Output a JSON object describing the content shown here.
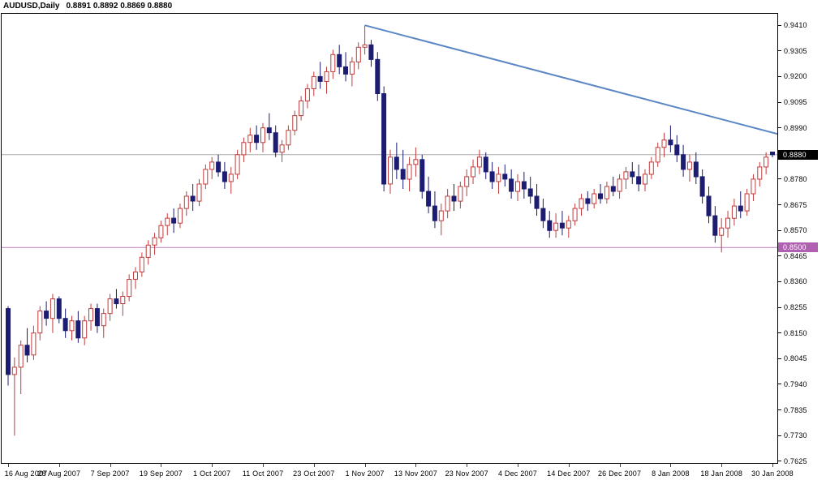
{
  "header": {
    "symbol_period": "AUDUSD,Daily",
    "ohlc": "0.8891 0.8892 0.8869 0.8880"
  },
  "chart_data": {
    "type": "candlestick",
    "title": "AUDUSD Daily",
    "symbol": "AUDUSD",
    "timeframe": "Daily",
    "last_quote": {
      "open": 0.8891,
      "high": 0.8892,
      "low": 0.8869,
      "close": 0.888
    },
    "ylim": [
      0.7618,
      0.9457
    ],
    "y_ticks": [
      0.941,
      0.9305,
      0.92,
      0.9095,
      0.899,
      0.878,
      0.8675,
      0.857,
      0.8465,
      0.836,
      0.8255,
      0.815,
      0.8045,
      0.794,
      0.7835,
      0.773,
      0.7625
    ],
    "x_tick_labels": [
      "16 Aug 2007",
      "28 Aug 2007",
      "7 Sep 2007",
      "19 Sep 2007",
      "1 Oct 2007",
      "11 Oct 2007",
      "23 Oct 2007",
      "1 Nov 2007",
      "13 Nov 2007",
      "23 Nov 2007",
      "4 Dec 2007",
      "14 Dec 2007",
      "26 Dec 2007",
      "8 Jan 2008",
      "18 Jan 2008",
      "30 Jan 2008"
    ],
    "x_tick_every": 8,
    "colors": {
      "up": "#C13B3B",
      "up_fill": "#FFFFFF",
      "down": "#1C1C72",
      "background": "#FFFFFF",
      "border": "#000000"
    },
    "trendline": {
      "from_index": 56,
      "from_price": 0.941,
      "to_price": 0.8965,
      "color": "#5B87C5"
    },
    "hlines": [
      {
        "price": 0.888,
        "line_color": "#ABABAB",
        "label": "0.8880",
        "label_bg": "#000000",
        "label_fg": "#FFFFFF"
      },
      {
        "price": 0.85,
        "line_color": "#BD7CBD",
        "label": "0.8500",
        "label_bg": "#B060B0",
        "label_fg": "#FFFFFF"
      }
    ],
    "candles": [
      [
        0.825,
        0.826,
        0.7935,
        0.798
      ],
      [
        0.798,
        0.805,
        0.773,
        0.801
      ],
      [
        0.801,
        0.812,
        0.79,
        0.81
      ],
      [
        0.81,
        0.817,
        0.803,
        0.806
      ],
      [
        0.806,
        0.818,
        0.804,
        0.815
      ],
      [
        0.815,
        0.826,
        0.812,
        0.824
      ],
      [
        0.824,
        0.828,
        0.818,
        0.821
      ],
      [
        0.821,
        0.831,
        0.815,
        0.829
      ],
      [
        0.829,
        0.83,
        0.819,
        0.821
      ],
      [
        0.821,
        0.825,
        0.813,
        0.816
      ],
      [
        0.816,
        0.822,
        0.812,
        0.82
      ],
      [
        0.82,
        0.824,
        0.811,
        0.813
      ],
      [
        0.813,
        0.822,
        0.81,
        0.82
      ],
      [
        0.82,
        0.827,
        0.816,
        0.825
      ],
      [
        0.825,
        0.827,
        0.815,
        0.818
      ],
      [
        0.818,
        0.825,
        0.813,
        0.823
      ],
      [
        0.823,
        0.831,
        0.82,
        0.829
      ],
      [
        0.829,
        0.833,
        0.825,
        0.827
      ],
      [
        0.827,
        0.832,
        0.822,
        0.83
      ],
      [
        0.83,
        0.839,
        0.828,
        0.837
      ],
      [
        0.837,
        0.842,
        0.833,
        0.84
      ],
      [
        0.84,
        0.848,
        0.838,
        0.846
      ],
      [
        0.846,
        0.853,
        0.843,
        0.851
      ],
      [
        0.851,
        0.856,
        0.847,
        0.854
      ],
      [
        0.854,
        0.861,
        0.852,
        0.859
      ],
      [
        0.859,
        0.864,
        0.855,
        0.862
      ],
      [
        0.862,
        0.866,
        0.856,
        0.86
      ],
      [
        0.86,
        0.868,
        0.858,
        0.866
      ],
      [
        0.866,
        0.873,
        0.863,
        0.871
      ],
      [
        0.871,
        0.876,
        0.865,
        0.869
      ],
      [
        0.869,
        0.878,
        0.867,
        0.876
      ],
      [
        0.876,
        0.884,
        0.874,
        0.882
      ],
      [
        0.882,
        0.887,
        0.878,
        0.885
      ],
      [
        0.885,
        0.888,
        0.879,
        0.881
      ],
      [
        0.881,
        0.885,
        0.874,
        0.877
      ],
      [
        0.877,
        0.883,
        0.872,
        0.88
      ],
      [
        0.88,
        0.89,
        0.878,
        0.888
      ],
      [
        0.888,
        0.895,
        0.885,
        0.893
      ],
      [
        0.893,
        0.899,
        0.889,
        0.896
      ],
      [
        0.896,
        0.9,
        0.89,
        0.893
      ],
      [
        0.893,
        0.901,
        0.889,
        0.899
      ],
      [
        0.899,
        0.905,
        0.894,
        0.897
      ],
      [
        0.897,
        0.9,
        0.887,
        0.889
      ],
      [
        0.889,
        0.894,
        0.885,
        0.892
      ],
      [
        0.892,
        0.9,
        0.89,
        0.898
      ],
      [
        0.898,
        0.906,
        0.896,
        0.904
      ],
      [
        0.904,
        0.912,
        0.902,
        0.91
      ],
      [
        0.91,
        0.917,
        0.907,
        0.915
      ],
      [
        0.915,
        0.922,
        0.912,
        0.92
      ],
      [
        0.92,
        0.926,
        0.915,
        0.918
      ],
      [
        0.918,
        0.924,
        0.913,
        0.922
      ],
      [
        0.922,
        0.931,
        0.919,
        0.929
      ],
      [
        0.929,
        0.933,
        0.921,
        0.924
      ],
      [
        0.924,
        0.93,
        0.918,
        0.921
      ],
      [
        0.921,
        0.928,
        0.916,
        0.926
      ],
      [
        0.926,
        0.934,
        0.923,
        0.932
      ],
      [
        0.932,
        0.941,
        0.929,
        0.933
      ],
      [
        0.933,
        0.935,
        0.924,
        0.927
      ],
      [
        0.927,
        0.93,
        0.91,
        0.913
      ],
      [
        0.913,
        0.916,
        0.873,
        0.876
      ],
      [
        0.876,
        0.89,
        0.872,
        0.887
      ],
      [
        0.887,
        0.893,
        0.878,
        0.882
      ],
      [
        0.882,
        0.89,
        0.874,
        0.878
      ],
      [
        0.878,
        0.887,
        0.873,
        0.884
      ],
      [
        0.884,
        0.891,
        0.879,
        0.886
      ],
      [
        0.886,
        0.888,
        0.87,
        0.873
      ],
      [
        0.873,
        0.879,
        0.864,
        0.867
      ],
      [
        0.867,
        0.873,
        0.858,
        0.861
      ],
      [
        0.861,
        0.868,
        0.855,
        0.865
      ],
      [
        0.865,
        0.874,
        0.862,
        0.871
      ],
      [
        0.871,
        0.876,
        0.865,
        0.869
      ],
      [
        0.869,
        0.877,
        0.866,
        0.875
      ],
      [
        0.875,
        0.882,
        0.871,
        0.879
      ],
      [
        0.879,
        0.886,
        0.876,
        0.883
      ],
      [
        0.883,
        0.89,
        0.88,
        0.887
      ],
      [
        0.887,
        0.889,
        0.878,
        0.881
      ],
      [
        0.881,
        0.885,
        0.874,
        0.877
      ],
      [
        0.877,
        0.883,
        0.872,
        0.88
      ],
      [
        0.88,
        0.884,
        0.875,
        0.878
      ],
      [
        0.878,
        0.882,
        0.87,
        0.873
      ],
      [
        0.873,
        0.88,
        0.869,
        0.877
      ],
      [
        0.877,
        0.881,
        0.87,
        0.874
      ],
      [
        0.874,
        0.879,
        0.868,
        0.871
      ],
      [
        0.871,
        0.876,
        0.863,
        0.866
      ],
      [
        0.866,
        0.87,
        0.858,
        0.861
      ],
      [
        0.861,
        0.865,
        0.854,
        0.857
      ],
      [
        0.857,
        0.864,
        0.854,
        0.86
      ],
      [
        0.86,
        0.865,
        0.855,
        0.858
      ],
      [
        0.858,
        0.863,
        0.854,
        0.861
      ],
      [
        0.861,
        0.868,
        0.859,
        0.866
      ],
      [
        0.866,
        0.872,
        0.863,
        0.87
      ],
      [
        0.87,
        0.873,
        0.865,
        0.868
      ],
      [
        0.868,
        0.874,
        0.866,
        0.872
      ],
      [
        0.872,
        0.876,
        0.868,
        0.87
      ],
      [
        0.87,
        0.877,
        0.868,
        0.875
      ],
      [
        0.875,
        0.879,
        0.871,
        0.873
      ],
      [
        0.873,
        0.88,
        0.87,
        0.878
      ],
      [
        0.878,
        0.883,
        0.874,
        0.881
      ],
      [
        0.881,
        0.885,
        0.876,
        0.879
      ],
      [
        0.879,
        0.884,
        0.873,
        0.876
      ],
      [
        0.876,
        0.882,
        0.873,
        0.88
      ],
      [
        0.88,
        0.887,
        0.878,
        0.885
      ],
      [
        0.885,
        0.893,
        0.883,
        0.891
      ],
      [
        0.891,
        0.897,
        0.887,
        0.894
      ],
      [
        0.894,
        0.9,
        0.889,
        0.892
      ],
      [
        0.892,
        0.896,
        0.885,
        0.888
      ],
      [
        0.888,
        0.892,
        0.879,
        0.882
      ],
      [
        0.882,
        0.888,
        0.877,
        0.885
      ],
      [
        0.885,
        0.889,
        0.876,
        0.879
      ],
      [
        0.879,
        0.882,
        0.868,
        0.871
      ],
      [
        0.871,
        0.875,
        0.86,
        0.863
      ],
      [
        0.863,
        0.867,
        0.852,
        0.855
      ],
      [
        0.855,
        0.862,
        0.848,
        0.858
      ],
      [
        0.858,
        0.865,
        0.854,
        0.862
      ],
      [
        0.862,
        0.87,
        0.859,
        0.867
      ],
      [
        0.867,
        0.873,
        0.862,
        0.865
      ],
      [
        0.865,
        0.874,
        0.863,
        0.872
      ],
      [
        0.872,
        0.88,
        0.869,
        0.878
      ],
      [
        0.878,
        0.885,
        0.875,
        0.883
      ],
      [
        0.883,
        0.889,
        0.88,
        0.887
      ],
      [
        0.8891,
        0.8892,
        0.8869,
        0.888
      ]
    ]
  }
}
